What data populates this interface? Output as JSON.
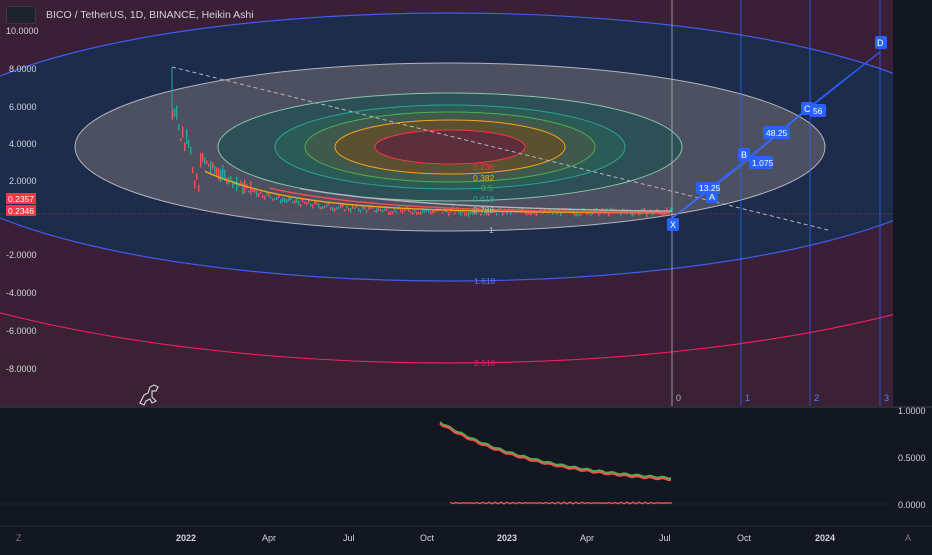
{
  "header": {
    "title": "BICO / TetherUS, 1D, BINANCE, Heikin Ashi"
  },
  "price_axis": {
    "labels": [
      "10.0000",
      "8.0000",
      "6.0000",
      "4.0000",
      "2.0000",
      "-2.0000",
      "-4.0000",
      "-6.0000",
      "-8.0000"
    ],
    "last_price_badge": "0.2357",
    "last_price_badge2": "0.2346",
    "badge_color": "#f23645"
  },
  "oscillator_axis": {
    "labels": [
      "1.0000",
      "0.5000",
      "0.0000"
    ]
  },
  "time_axis": {
    "labels": [
      "2022",
      "Apr",
      "Jul",
      "Oct",
      "2023",
      "Apr",
      "Jul",
      "Oct",
      "2024"
    ],
    "left_button": "Z",
    "right_button": "A"
  },
  "fib_levels": {
    "inner_labels": [
      "0.236",
      "0.382",
      "0.5",
      "0.618",
      "0.786",
      "1"
    ],
    "outer_labels": [
      "1.618",
      "2.618"
    ]
  },
  "time_zones": {
    "labels": [
      "0",
      "1",
      "2",
      "3"
    ]
  },
  "pattern": {
    "points": [
      "X",
      "A",
      "B",
      "C",
      "D"
    ],
    "ratios": [
      "13.25",
      "1.075",
      "48.25",
      "56"
    ]
  },
  "colors": {
    "background": "#131722",
    "pattern_blue": "#2962ff",
    "candle_up": "#26a69a",
    "candle_down": "#ef5350"
  }
}
